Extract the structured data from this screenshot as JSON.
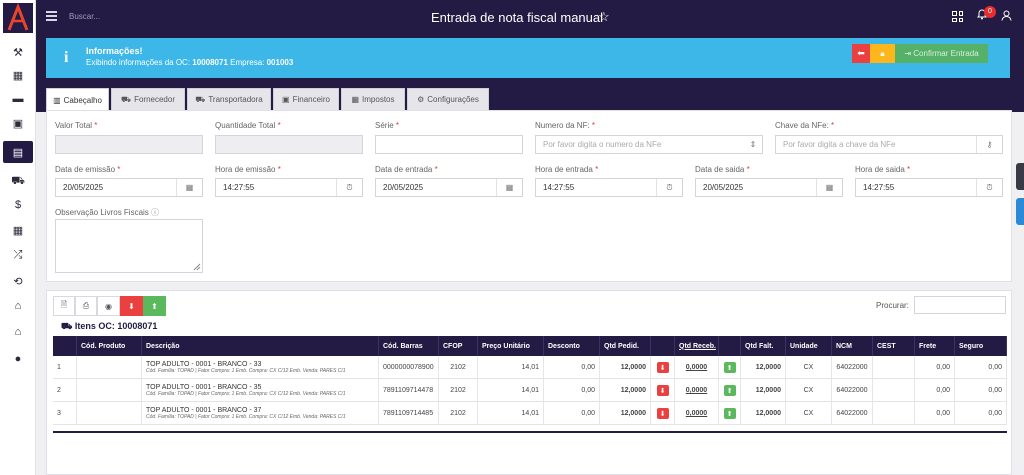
{
  "header": {
    "search_placeholder": "Buscar...",
    "title": "Entrada de nota fiscal manual",
    "notification_count": "0"
  },
  "sidebar": {
    "items": [
      {
        "icon": "wrench-icon",
        "glyph": "⚒"
      },
      {
        "icon": "calculator-icon",
        "glyph": "▦"
      },
      {
        "icon": "book-icon",
        "glyph": "▬"
      },
      {
        "icon": "money-icon",
        "glyph": "▣"
      },
      {
        "icon": "briefcase-icon",
        "glyph": "▤"
      },
      {
        "icon": "cart-icon",
        "glyph": "⛟"
      },
      {
        "icon": "dollar-icon",
        "glyph": "$"
      },
      {
        "icon": "table-icon",
        "glyph": "▦"
      },
      {
        "icon": "shuffle-icon",
        "glyph": "⤮"
      },
      {
        "icon": "retweet-icon",
        "glyph": "⟲"
      },
      {
        "icon": "bank-icon",
        "glyph": "⌂"
      },
      {
        "icon": "home-icon",
        "glyph": "⌂"
      },
      {
        "icon": "user-icon",
        "glyph": "●"
      }
    ]
  },
  "info": {
    "title": "Informações!",
    "text_prefix": "Exibindo informações da OC:",
    "oc": "10008071",
    "empresa_label": "Empresa:",
    "empresa": "001003",
    "confirm_label": "Confirmar Entrada"
  },
  "tabs": [
    {
      "label": "Cabeçalho",
      "icon": "barcode-icon",
      "glyph": "▥"
    },
    {
      "label": "Fornecedor",
      "icon": "cart-icon",
      "glyph": "⛟"
    },
    {
      "label": "Transportadora",
      "icon": "truck-icon",
      "glyph": "⛟"
    },
    {
      "label": "Financeiro",
      "icon": "money-icon",
      "glyph": "▣"
    },
    {
      "label": "Impostos",
      "icon": "calculator-icon",
      "glyph": "▦"
    },
    {
      "label": "Configurações",
      "icon": "gear-icon",
      "glyph": "⚙"
    }
  ],
  "form": {
    "valor_total_label": "Valor Total",
    "quantidade_total_label": "Quantidade Total",
    "serie_label": "Série",
    "numero_nf_label": "Numero da NF:",
    "numero_nf_placeholder": "Por favor digita o numero da NFe",
    "chave_nfe_label": "Chave da NFe:",
    "chave_nfe_placeholder": "Por favor digita a chave da NFe",
    "data_emissao_label": "Data de emissão",
    "data_emissao": "20/05/2025",
    "hora_emissao_label": "Hora de emissão",
    "hora_emissao": "14:27:55",
    "data_entrada_label": "Data de entrada",
    "data_entrada": "20/05/2025",
    "hora_entrada_label": "Hora de entrada",
    "hora_entrada": "14:27:55",
    "data_saida_label": "Data de saida",
    "data_saida": "20/05/2025",
    "hora_saida_label": "Hora de saida",
    "hora_saida": "14:27:55",
    "obs_label": "Observação Livros Fiscais"
  },
  "items": {
    "procurar_label": "Procurar:",
    "title_prefix": "Itens OC:",
    "title_oc": "10008071",
    "columns": [
      "",
      "Cód. Produto",
      "Descrição",
      "Cód. Barras",
      "CFOP",
      "Preço Unitário",
      "Desconto",
      "Qtd Pedid.",
      "",
      "Qtd Receb.",
      "",
      "Qtd Falt.",
      "Unidade",
      "NCM",
      "CEST",
      "Frete",
      "Seguro"
    ],
    "rows": [
      {
        "n": "1",
        "cod": "",
        "desc": "TOP ADULTO - 0001 - BRANCO - 33",
        "sub": "Cód. Família: TOPAD | Fator Compra: 1 Emb. Compra: CX C/12 Emb. Venda: PARES C/1",
        "barras": "0000000078900",
        "cfop": "2102",
        "preco": "14,01",
        "desconto": "0,00",
        "qtd_pedid": "12,0000",
        "qtd_receb": "0,0000",
        "qtd_falt": "12,0000",
        "unidade": "CX",
        "ncm": "64022000",
        "cest": "",
        "frete": "0,00",
        "seguro": "0,00"
      },
      {
        "n": "2",
        "cod": "",
        "desc": "TOP ADULTO - 0001 - BRANCO - 35",
        "sub": "Cód. Família: TOPAD | Fator Compra: 1 Emb. Compra: CX C/12 Emb. Venda: PARES C/1",
        "barras": "7891109714478",
        "cfop": "2102",
        "preco": "14,01",
        "desconto": "0,00",
        "qtd_pedid": "12,0000",
        "qtd_receb": "0,0000",
        "qtd_falt": "12,0000",
        "unidade": "CX",
        "ncm": "64022000",
        "cest": "",
        "frete": "0,00",
        "seguro": "0,00"
      },
      {
        "n": "3",
        "cod": "",
        "desc": "TOP ADULTO - 0001 - BRANCO - 37",
        "sub": "Cód. Família: TOPAD | Fator Compra: 1 Emb. Compra: CX C/12 Emb. Venda: PARES C/1",
        "barras": "7891109714485",
        "cfop": "2102",
        "preco": "14,01",
        "desconto": "0,00",
        "qtd_pedid": "12,0000",
        "qtd_receb": "0,0000",
        "qtd_falt": "12,0000",
        "unidade": "CX",
        "ncm": "64022000",
        "cest": "",
        "frete": "0,00",
        "seguro": "0,00"
      }
    ]
  },
  "colors": {
    "navy": "#231b44",
    "info_blue": "#3db6e8",
    "red": "#ea4040",
    "yellow": "#fdb71d",
    "green": "#55b068"
  }
}
